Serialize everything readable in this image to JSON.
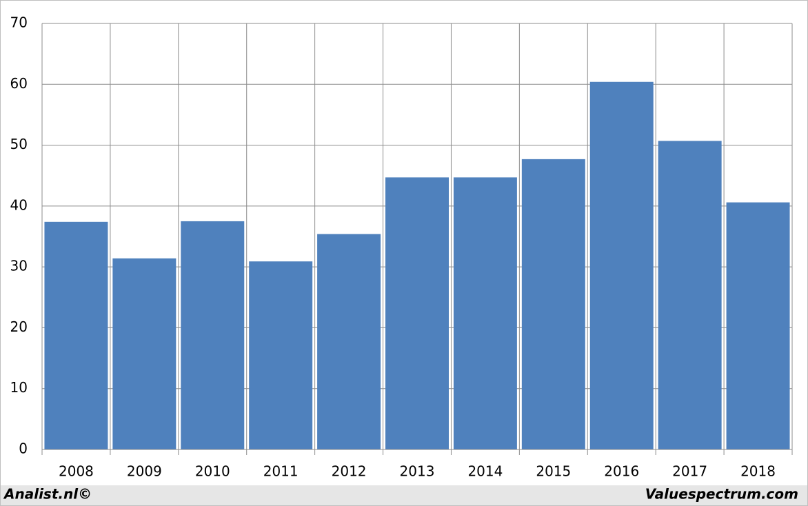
{
  "chart_data": {
    "type": "bar",
    "categories": [
      "2008",
      "2009",
      "2010",
      "2011",
      "2012",
      "2013",
      "2014",
      "2015",
      "2016",
      "2017",
      "2018"
    ],
    "values": [
      37.4,
      31.4,
      37.5,
      30.9,
      35.4,
      44.7,
      44.7,
      47.7,
      60.4,
      50.7,
      40.6
    ],
    "color": "#4f81bd",
    "ylim": [
      0,
      70
    ],
    "yticks": [
      0,
      10,
      20,
      30,
      40,
      50,
      60,
      70
    ],
    "grid": true,
    "footer_left": "Analist.nl©",
    "footer_right": "Valuespectrum.com"
  }
}
